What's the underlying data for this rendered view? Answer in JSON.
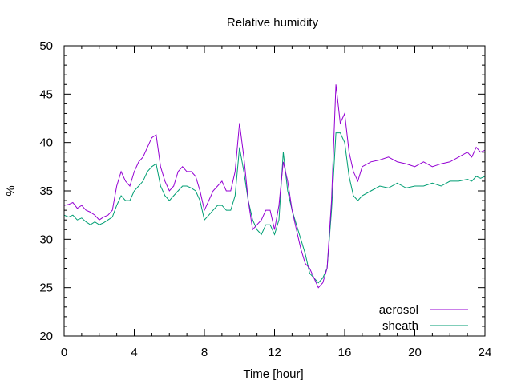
{
  "chart_data": {
    "type": "line",
    "title": "Relative humidity",
    "xlabel": "Time [hour]",
    "ylabel": "%",
    "xlim": [
      0,
      24
    ],
    "ylim": [
      20,
      50
    ],
    "xticks": [
      0,
      4,
      8,
      12,
      16,
      20,
      24
    ],
    "yticks": [
      20,
      25,
      30,
      35,
      40,
      45,
      50
    ],
    "grid": false,
    "legend_position": "bottom-right",
    "series": [
      {
        "name": "aerosol",
        "color": "#9400d3",
        "x": [
          0,
          0.25,
          0.5,
          0.75,
          1,
          1.25,
          1.5,
          1.75,
          2,
          2.25,
          2.5,
          2.75,
          3,
          3.25,
          3.5,
          3.75,
          4,
          4.25,
          4.5,
          4.75,
          5,
          5.25,
          5.5,
          5.75,
          6,
          6.25,
          6.5,
          6.75,
          7,
          7.25,
          7.5,
          7.75,
          8,
          8.25,
          8.5,
          8.75,
          9,
          9.25,
          9.5,
          9.75,
          10,
          10.25,
          10.5,
          10.75,
          11,
          11.25,
          11.5,
          11.75,
          12,
          12.25,
          12.5,
          12.75,
          13,
          13.25,
          13.5,
          13.75,
          14,
          14.25,
          14.5,
          14.75,
          15,
          15.25,
          15.5,
          15.75,
          16,
          16.25,
          16.5,
          16.75,
          17,
          17.5,
          18,
          18.5,
          19,
          19.5,
          20,
          20.5,
          21,
          21.5,
          22,
          22.5,
          23,
          23.25,
          23.5,
          23.75,
          24
        ],
        "y": [
          33.5,
          33.6,
          33.8,
          33.2,
          33.5,
          33.0,
          32.8,
          32.5,
          32.0,
          32.3,
          32.5,
          33.0,
          35.5,
          37.0,
          36.0,
          35.5,
          37.0,
          38.0,
          38.5,
          39.5,
          40.5,
          40.8,
          37.5,
          36.0,
          35.0,
          35.5,
          37.0,
          37.5,
          37.0,
          37.0,
          36.5,
          35.0,
          33.0,
          34.0,
          35.0,
          35.5,
          36.0,
          35.0,
          35.0,
          37.0,
          42.0,
          38.5,
          34.0,
          31.0,
          31.5,
          32.0,
          33.0,
          33.0,
          31.0,
          33.5,
          38.0,
          36.0,
          33.0,
          31.0,
          29.0,
          27.5,
          27.0,
          26.0,
          25.0,
          25.5,
          27.0,
          34.0,
          46.0,
          42.0,
          43.0,
          39.0,
          37.0,
          36.0,
          37.5,
          38.0,
          38.2,
          38.5,
          38.0,
          37.8,
          37.5,
          38.0,
          37.5,
          37.8,
          38.0,
          38.5,
          39.0,
          38.5,
          39.5,
          39.0,
          39.2
        ]
      },
      {
        "name": "sheath",
        "color": "#009e73",
        "x": [
          0,
          0.25,
          0.5,
          0.75,
          1,
          1.25,
          1.5,
          1.75,
          2,
          2.25,
          2.5,
          2.75,
          3,
          3.25,
          3.5,
          3.75,
          4,
          4.25,
          4.5,
          4.75,
          5,
          5.25,
          5.5,
          5.75,
          6,
          6.25,
          6.5,
          6.75,
          7,
          7.25,
          7.5,
          7.75,
          8,
          8.25,
          8.5,
          8.75,
          9,
          9.25,
          9.5,
          9.75,
          10,
          10.25,
          10.5,
          10.75,
          11,
          11.25,
          11.5,
          11.75,
          12,
          12.25,
          12.5,
          12.75,
          13,
          13.25,
          13.5,
          13.75,
          14,
          14.25,
          14.5,
          14.75,
          15,
          15.25,
          15.5,
          15.75,
          16,
          16.25,
          16.5,
          16.75,
          17,
          17.5,
          18,
          18.5,
          19,
          19.5,
          20,
          20.5,
          21,
          21.5,
          22,
          22.5,
          23,
          23.25,
          23.5,
          23.75,
          24
        ],
        "y": [
          32.5,
          32.3,
          32.5,
          32.0,
          32.2,
          31.8,
          31.5,
          31.8,
          31.5,
          31.7,
          32.0,
          32.3,
          33.5,
          34.5,
          34.0,
          34.0,
          35.0,
          35.5,
          36.0,
          37.0,
          37.5,
          37.8,
          35.5,
          34.5,
          34.0,
          34.5,
          35.0,
          35.5,
          35.5,
          35.3,
          35.0,
          34.0,
          32.0,
          32.5,
          33.0,
          33.5,
          33.5,
          33.0,
          33.0,
          34.5,
          39.5,
          37.0,
          34.0,
          32.0,
          31.0,
          30.5,
          31.5,
          31.5,
          30.5,
          32.0,
          39.0,
          35.0,
          33.0,
          31.5,
          30.0,
          28.5,
          26.5,
          26.0,
          25.5,
          26.0,
          27.0,
          33.0,
          41.0,
          41.0,
          40.0,
          36.5,
          34.5,
          34.0,
          34.5,
          35.0,
          35.5,
          35.3,
          35.8,
          35.3,
          35.5,
          35.5,
          35.8,
          35.5,
          36.0,
          36.0,
          36.2,
          36.0,
          36.5,
          36.3,
          36.5
        ]
      }
    ]
  }
}
